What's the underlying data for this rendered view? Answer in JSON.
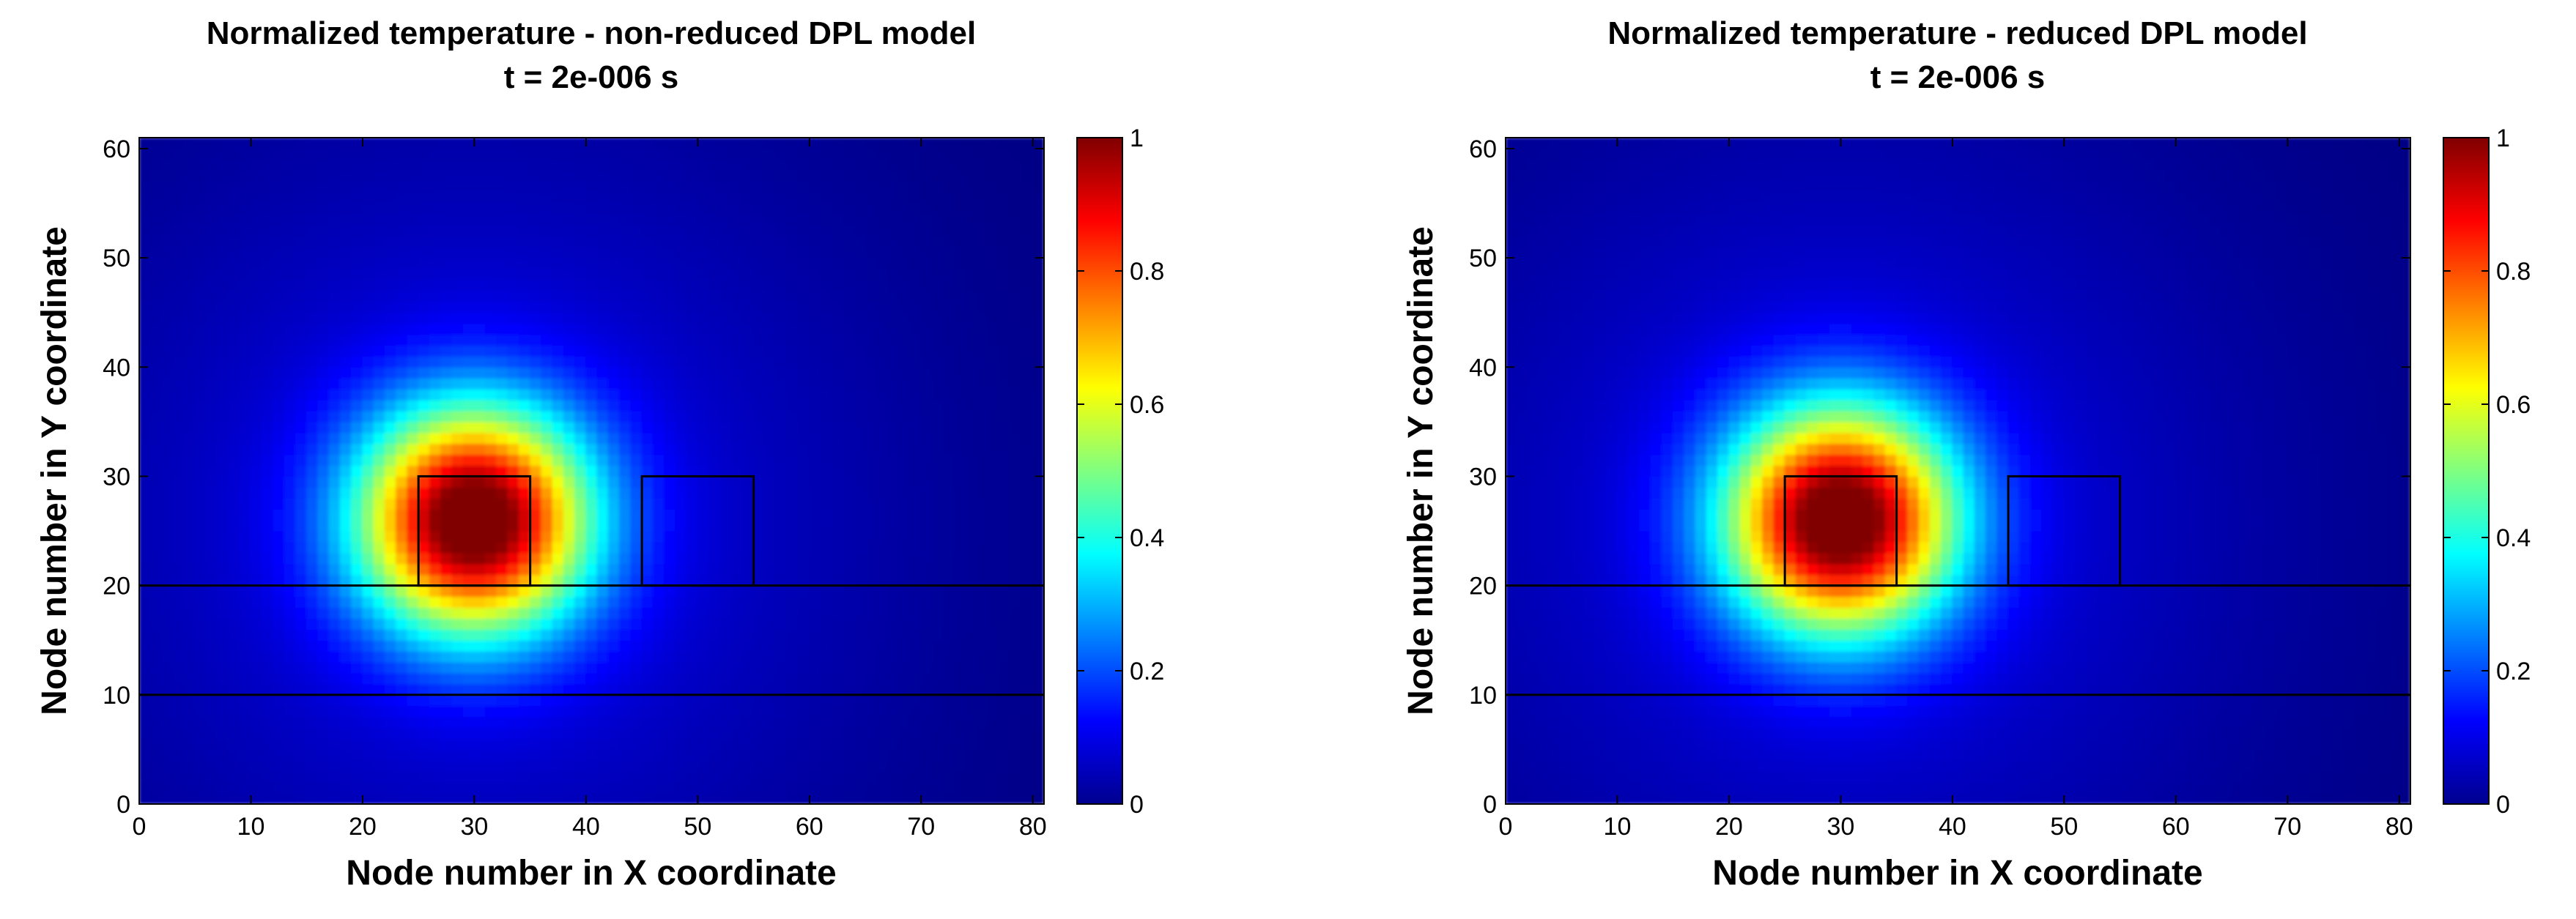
{
  "chart_data": [
    {
      "type": "heatmap",
      "title": "Normalized temperature - non-reduced DPL model",
      "subtitle": "t = 2e-006 s",
      "xlabel": "Node number in X coordinate",
      "ylabel": "Node number in Y coordinate",
      "xlim": [
        0,
        81
      ],
      "ylim": [
        0,
        61
      ],
      "xticks": [
        0,
        10,
        20,
        30,
        40,
        50,
        60,
        70,
        80
      ],
      "yticks": [
        0,
        10,
        20,
        30,
        40,
        50,
        60
      ],
      "colorbar": {
        "range": [
          0,
          1
        ],
        "ticks": [
          0,
          0.2,
          0.4,
          0.6,
          0.8,
          1
        ],
        "colormap": "jet"
      },
      "hotspot": {
        "x": 30,
        "y": 26,
        "peak": 1.0
      },
      "overlay_lines_y": [
        10,
        20
      ],
      "overlay_boxes": [
        {
          "x0": 25,
          "x1": 35,
          "y0": 20,
          "y1": 30
        },
        {
          "x0": 45,
          "x1": 55,
          "y0": 20,
          "y1": 30
        }
      ]
    },
    {
      "type": "heatmap",
      "title": "Normalized temperature - reduced DPL model",
      "subtitle": "t = 2e-006 s",
      "xlabel": "Node number in X coordinate",
      "ylabel": "Node number in Y coordinate",
      "xlim": [
        0,
        81
      ],
      "ylim": [
        0,
        61
      ],
      "xticks": [
        0,
        10,
        20,
        30,
        40,
        50,
        60,
        70,
        80
      ],
      "yticks": [
        0,
        10,
        20,
        30,
        40,
        50,
        60
      ],
      "colorbar": {
        "range": [
          0,
          1
        ],
        "ticks": [
          0,
          0.2,
          0.4,
          0.6,
          0.8,
          1
        ],
        "colormap": "jet"
      },
      "hotspot": {
        "x": 30,
        "y": 26,
        "peak": 1.0
      },
      "overlay_lines_y": [
        10,
        20
      ],
      "overlay_boxes": [
        {
          "x0": 25,
          "x1": 35,
          "y0": 20,
          "y1": 30
        },
        {
          "x0": 45,
          "x1": 55,
          "y0": 20,
          "y1": 30
        }
      ]
    }
  ]
}
